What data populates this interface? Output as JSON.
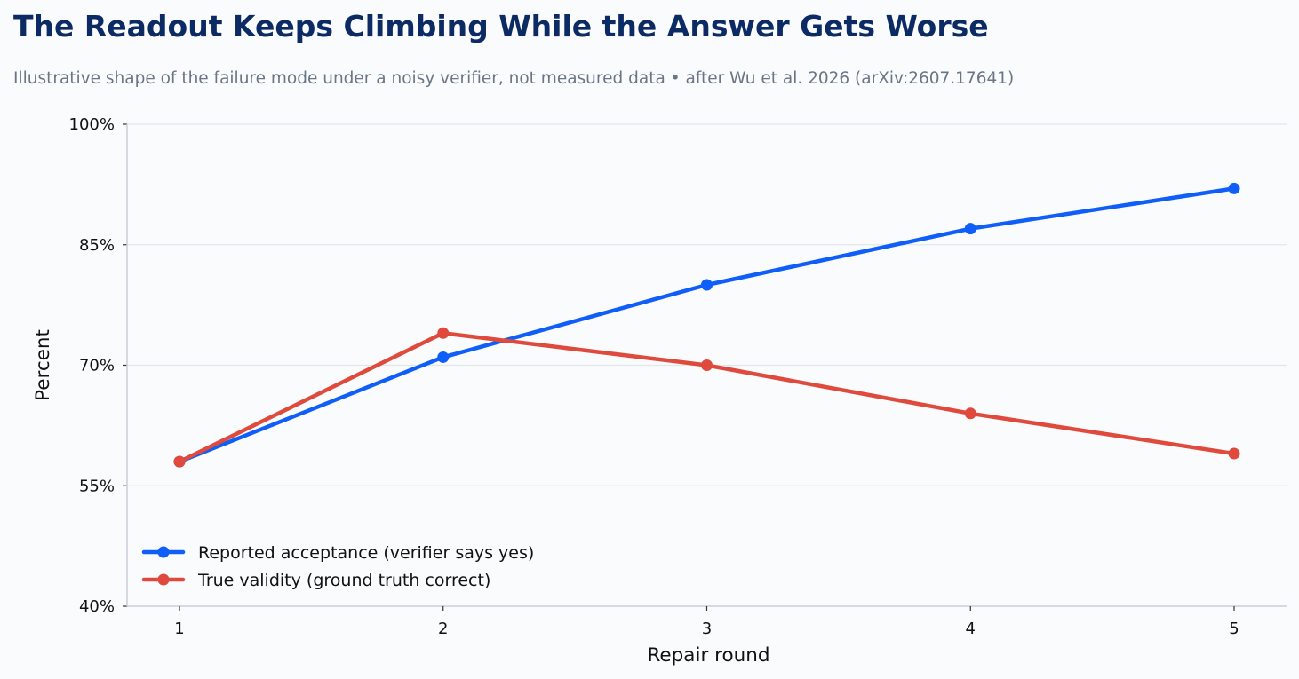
{
  "header": {
    "title": "The Readout Keeps Climbing While the Answer Gets Worse",
    "subtitle": "Illustrative shape of the failure mode under a noisy verifier, not measured data  •  after Wu et al. 2026 (arXiv:2607.17641)"
  },
  "chart_data": {
    "type": "line",
    "x": [
      1,
      2,
      3,
      4,
      5
    ],
    "xlabel": "Repair round",
    "ylabel": "Percent",
    "ylim": [
      40,
      100
    ],
    "yticks": [
      40,
      55,
      70,
      85,
      100
    ],
    "ytick_labels": [
      "40%",
      "55%",
      "70%",
      "85%",
      "100%"
    ],
    "xtick_labels": [
      "1",
      "2",
      "3",
      "4",
      "5"
    ],
    "grid": "horizontal",
    "legend_position": "lower-left",
    "series": [
      {
        "name": "Reported acceptance (verifier says yes)",
        "values": [
          58,
          71,
          80,
          87,
          92
        ],
        "color": "#0f5ef7"
      },
      {
        "name": "True validity (ground truth correct)",
        "values": [
          58,
          74,
          70,
          64,
          59
        ],
        "color": "#df4a3d"
      }
    ],
    "colors": {
      "background": "#f9fbfd",
      "grid": "#e3e7ec",
      "axis": "#c9ced6"
    }
  }
}
